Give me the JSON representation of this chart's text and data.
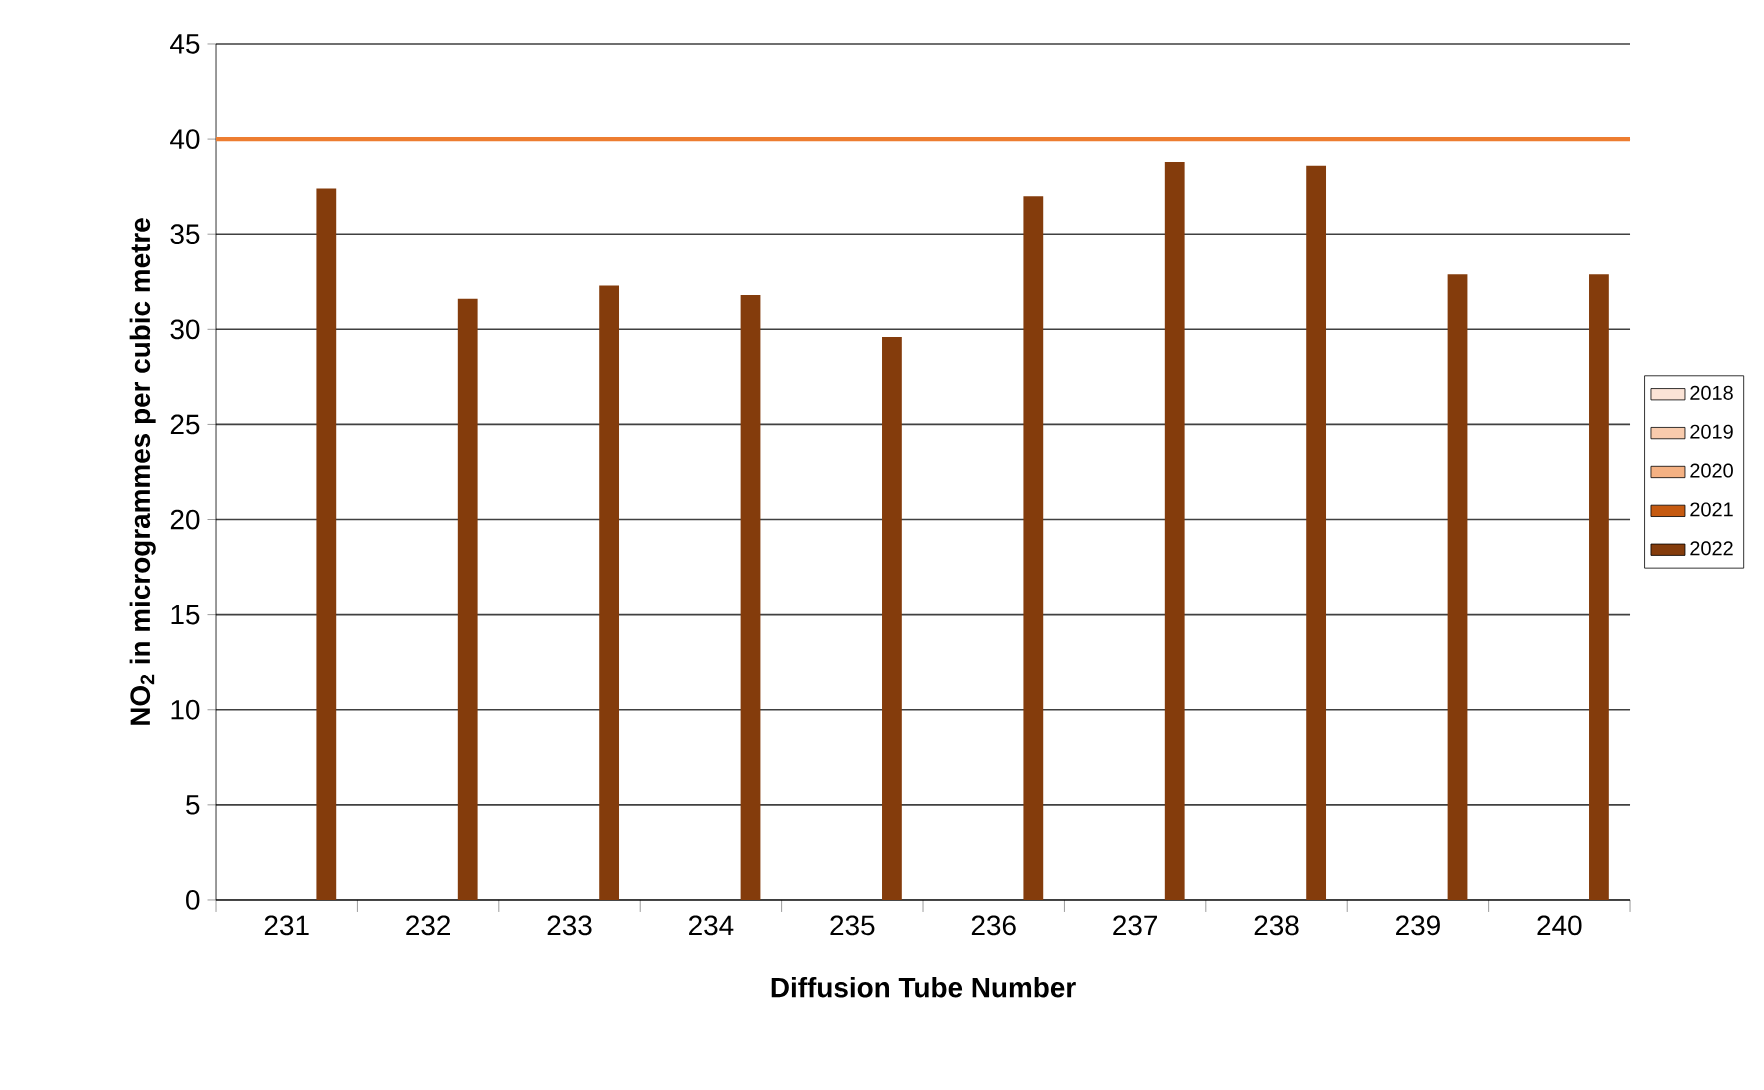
{
  "chart_data": {
    "type": "bar",
    "xlabel": "Diffusion Tube Number",
    "ylabel": "NO$_{2}$ in microgrammes per cubic metre",
    "categories": [
      "231",
      "232",
      "233",
      "234",
      "235",
      "236",
      "237",
      "238",
      "239",
      "240"
    ],
    "series": [
      {
        "name": "2018",
        "color": "#fbe3d6",
        "values": [
          null,
          null,
          null,
          null,
          null,
          null,
          null,
          null,
          null,
          null
        ]
      },
      {
        "name": "2019",
        "color": "#f8cbad",
        "values": [
          null,
          null,
          null,
          null,
          null,
          null,
          null,
          null,
          null,
          null
        ]
      },
      {
        "name": "2020",
        "color": "#f4b183",
        "values": [
          null,
          null,
          null,
          null,
          null,
          null,
          null,
          null,
          null,
          null
        ]
      },
      {
        "name": "2021",
        "color": "#c55a11",
        "values": [
          null,
          null,
          null,
          null,
          null,
          null,
          null,
          null,
          null,
          null
        ]
      },
      {
        "name": "2022",
        "color": "#843c0c",
        "values": [
          37.4,
          31.6,
          32.3,
          31.8,
          29.6,
          37.0,
          38.8,
          38.6,
          32.9,
          32.9
        ]
      }
    ],
    "ylim": [
      0,
      45
    ],
    "yticks": [
      0,
      5,
      10,
      15,
      20,
      25,
      30,
      35,
      40,
      45
    ],
    "ref_lines": [
      {
        "axis": "y",
        "value": 40,
        "color": "#ed7d31"
      }
    ],
    "grid": "y",
    "legend": "right"
  }
}
